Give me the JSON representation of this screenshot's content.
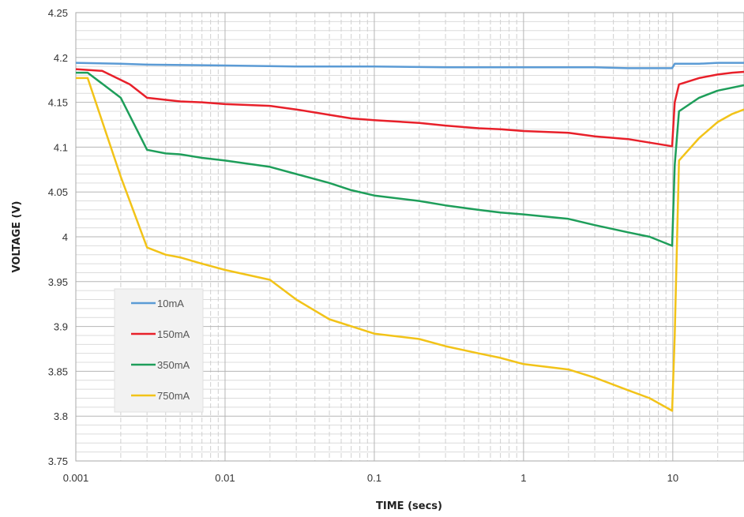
{
  "chart_data": {
    "type": "line",
    "title": "",
    "xlabel": "TIME (secs)",
    "ylabel": "VOLTAGE (V)",
    "xscale": "log",
    "xlim": [
      0.001,
      30
    ],
    "ylim": [
      3.75,
      4.25
    ],
    "grid": true,
    "legend_position": "bottom-left",
    "x_ticks": [
      {
        "value": 0.001,
        "label": "0.001"
      },
      {
        "value": 0.01,
        "label": "0.01"
      },
      {
        "value": 0.1,
        "label": "0.1"
      },
      {
        "value": 1,
        "label": "1"
      },
      {
        "value": 10,
        "label": "10"
      }
    ],
    "y_ticks": [
      {
        "value": 3.75,
        "label": "3.75"
      },
      {
        "value": 3.8,
        "label": "3.8"
      },
      {
        "value": 3.85,
        "label": "3.85"
      },
      {
        "value": 3.9,
        "label": "3.9"
      },
      {
        "value": 3.95,
        "label": "3.95"
      },
      {
        "value": 4.0,
        "label": "4"
      },
      {
        "value": 4.05,
        "label": "4.05"
      },
      {
        "value": 4.1,
        "label": "4.1"
      },
      {
        "value": 4.15,
        "label": "4.15"
      },
      {
        "value": 4.2,
        "label": "4.2"
      },
      {
        "value": 4.25,
        "label": "4.25"
      }
    ],
    "series": [
      {
        "name": "10mA",
        "color": "#5b9bd5",
        "points": [
          [
            0.001,
            4.194
          ],
          [
            0.002,
            4.193
          ],
          [
            0.003,
            4.192
          ],
          [
            0.01,
            4.191
          ],
          [
            0.03,
            4.19
          ],
          [
            0.1,
            4.19
          ],
          [
            0.3,
            4.189
          ],
          [
            1,
            4.189
          ],
          [
            3,
            4.189
          ],
          [
            5,
            4.188
          ],
          [
            9.9,
            4.188
          ],
          [
            10.3,
            4.193
          ],
          [
            15,
            4.193
          ],
          [
            20,
            4.194
          ],
          [
            30,
            4.194
          ]
        ]
      },
      {
        "name": "150mA",
        "color": "#e8202a",
        "points": [
          [
            0.001,
            4.187
          ],
          [
            0.0015,
            4.185
          ],
          [
            0.002,
            4.175
          ],
          [
            0.0023,
            4.17
          ],
          [
            0.003,
            4.155
          ],
          [
            0.005,
            4.151
          ],
          [
            0.007,
            4.15
          ],
          [
            0.01,
            4.148
          ],
          [
            0.02,
            4.146
          ],
          [
            0.03,
            4.142
          ],
          [
            0.05,
            4.136
          ],
          [
            0.07,
            4.132
          ],
          [
            0.1,
            4.13
          ],
          [
            0.2,
            4.127
          ],
          [
            0.3,
            4.124
          ],
          [
            0.5,
            4.121
          ],
          [
            0.7,
            4.12
          ],
          [
            1,
            4.118
          ],
          [
            2,
            4.116
          ],
          [
            3,
            4.112
          ],
          [
            5,
            4.109
          ],
          [
            7,
            4.105
          ],
          [
            9.9,
            4.101
          ],
          [
            10.3,
            4.15
          ],
          [
            11,
            4.17
          ],
          [
            15,
            4.177
          ],
          [
            20,
            4.181
          ],
          [
            25,
            4.183
          ],
          [
            30,
            4.184
          ]
        ]
      },
      {
        "name": "350mA",
        "color": "#1e9e5a",
        "points": [
          [
            0.001,
            4.183
          ],
          [
            0.0012,
            4.183
          ],
          [
            0.002,
            4.155
          ],
          [
            0.003,
            4.097
          ],
          [
            0.004,
            4.093
          ],
          [
            0.005,
            4.092
          ],
          [
            0.007,
            4.088
          ],
          [
            0.01,
            4.085
          ],
          [
            0.02,
            4.078
          ],
          [
            0.03,
            4.07
          ],
          [
            0.05,
            4.06
          ],
          [
            0.07,
            4.052
          ],
          [
            0.1,
            4.046
          ],
          [
            0.2,
            4.04
          ],
          [
            0.3,
            4.035
          ],
          [
            0.5,
            4.03
          ],
          [
            0.7,
            4.027
          ],
          [
            1,
            4.025
          ],
          [
            2,
            4.02
          ],
          [
            3,
            4.013
          ],
          [
            5,
            4.005
          ],
          [
            7,
            4.0
          ],
          [
            9.9,
            3.99
          ],
          [
            10.3,
            4.08
          ],
          [
            11,
            4.14
          ],
          [
            15,
            4.155
          ],
          [
            20,
            4.163
          ],
          [
            30,
            4.169
          ]
        ]
      },
      {
        "name": "750mA",
        "color": "#f2c318",
        "points": [
          [
            0.001,
            4.177
          ],
          [
            0.0012,
            4.177
          ],
          [
            0.002,
            4.067
          ],
          [
            0.003,
            3.988
          ],
          [
            0.004,
            3.98
          ],
          [
            0.005,
            3.977
          ],
          [
            0.007,
            3.97
          ],
          [
            0.01,
            3.963
          ],
          [
            0.02,
            3.952
          ],
          [
            0.03,
            3.93
          ],
          [
            0.05,
            3.908
          ],
          [
            0.1,
            3.892
          ],
          [
            0.2,
            3.886
          ],
          [
            0.3,
            3.878
          ],
          [
            0.5,
            3.87
          ],
          [
            0.7,
            3.865
          ],
          [
            1,
            3.858
          ],
          [
            2,
            3.852
          ],
          [
            3,
            3.843
          ],
          [
            5,
            3.829
          ],
          [
            7,
            3.82
          ],
          [
            9.9,
            3.806
          ],
          [
            10.3,
            3.89
          ],
          [
            11,
            4.085
          ],
          [
            15,
            4.11
          ],
          [
            20,
            4.128
          ],
          [
            25,
            4.137
          ],
          [
            30,
            4.142
          ]
        ]
      }
    ]
  }
}
